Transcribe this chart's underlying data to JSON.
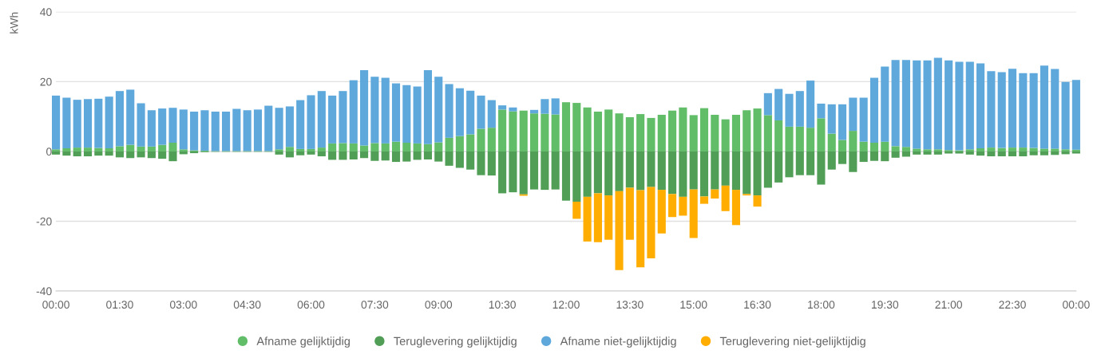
{
  "chart_data": {
    "type": "bar",
    "stacked": true,
    "ylabel": "kWh",
    "x": [
      0,
      0.25,
      0.5,
      0.75,
      1,
      1.25,
      1.5,
      1.75,
      2,
      2.25,
      2.5,
      2.75,
      3,
      3.25,
      3.5,
      3.75,
      4,
      4.25,
      4.5,
      4.75,
      5,
      5.25,
      5.5,
      5.75,
      6,
      6.25,
      6.5,
      6.75,
      7,
      7.25,
      7.5,
      7.75,
      8,
      8.25,
      8.5,
      8.75,
      9,
      9.25,
      9.5,
      9.75,
      10,
      10.25,
      10.5,
      10.75,
      11,
      11.25,
      11.5,
      11.75,
      12,
      12.25,
      12.5,
      12.75,
      13,
      13.25,
      13.5,
      13.75,
      14,
      14.25,
      14.5,
      14.75,
      15,
      15.25,
      15.5,
      15.75,
      16,
      16.25,
      16.5,
      16.75,
      17,
      17.25,
      17.5,
      17.75,
      18,
      18.25,
      18.5,
      18.75,
      19,
      19.25,
      19.5,
      19.75,
      20,
      20.25,
      20.5,
      20.75,
      21,
      21.25,
      21.5,
      21.75,
      22,
      22.25,
      22.5,
      22.75,
      23,
      23.25,
      23.5,
      23.75,
      24
    ],
    "series": [
      {
        "name": "Afname gelijktijdig",
        "color": "#62bd69",
        "values": [
          0.6,
          0.9,
          1.1,
          1.1,
          1.0,
          0.9,
          1.5,
          1.9,
          1.4,
          1.4,
          1.9,
          2.5,
          0.6,
          0.3,
          0.2,
          0.1,
          0.1,
          0.1,
          0.1,
          0.1,
          0.1,
          0.6,
          1.3,
          0.7,
          0.7,
          1.1,
          2.3,
          2.4,
          2.3,
          1.7,
          2.4,
          2.3,
          2.8,
          2.5,
          2.3,
          2.1,
          2.6,
          3.9,
          4.4,
          4.9,
          6.5,
          6.8,
          12.0,
          11.5,
          11.7,
          10.9,
          10.8,
          10.6,
          14.1,
          13.9,
          12.6,
          11.4,
          12.0,
          10.9,
          9.8,
          10.7,
          9.6,
          10.5,
          11.7,
          12.6,
          10.4,
          12.4,
          10.5,
          9.2,
          10.5,
          11.8,
          12.3,
          10.4,
          8.9,
          7.1,
          7.1,
          6.8,
          9.5,
          5.1,
          3.3,
          5.9,
          2.8,
          2.5,
          2.8,
          1.5,
          1.3,
          0.8,
          0.6,
          0.6,
          0.4,
          0.3,
          0.6,
          0.9,
          1.1,
          1.0,
          1.1,
          1.1,
          1.0,
          0.8,
          0.8,
          0.6,
          0.5
        ]
      },
      {
        "name": "Teruglevering gelijktijdig",
        "color": "#519e57",
        "values": [
          -0.9,
          -1.2,
          -1.4,
          -1.4,
          -1.2,
          -1.2,
          -1.7,
          -1.9,
          -1.7,
          -1.9,
          -2.1,
          -2.8,
          -0.8,
          -0.5,
          -0.2,
          -0.1,
          -0.1,
          -0.1,
          -0.1,
          -0.1,
          -0.1,
          -0.9,
          -1.7,
          -1.1,
          -0.9,
          -1.4,
          -2.4,
          -2.4,
          -2.3,
          -1.9,
          -2.7,
          -2.6,
          -3.0,
          -2.9,
          -2.4,
          -2.3,
          -2.9,
          -4.1,
          -4.7,
          -5.2,
          -6.8,
          -6.9,
          -12.0,
          -11.7,
          -12.3,
          -10.9,
          -11.0,
          -10.9,
          -14.1,
          -14.4,
          -13.0,
          -12.0,
          -12.6,
          -11.4,
          -10.4,
          -11.1,
          -10.2,
          -11.0,
          -12.2,
          -13.0,
          -10.9,
          -12.9,
          -10.9,
          -9.8,
          -11.0,
          -12.2,
          -12.6,
          -10.4,
          -8.9,
          -7.4,
          -6.8,
          -6.8,
          -9.5,
          -5.2,
          -3.6,
          -5.9,
          -3.0,
          -2.7,
          -2.8,
          -1.8,
          -1.5,
          -0.9,
          -0.9,
          -0.9,
          -0.6,
          -0.6,
          -0.9,
          -1.2,
          -1.4,
          -1.4,
          -1.4,
          -1.4,
          -1.1,
          -1.1,
          -1.0,
          -0.8,
          -0.6
        ]
      },
      {
        "name": "Afname niet-gelijktijdig",
        "color": "#5ea8dc",
        "values": [
          15.4,
          14.5,
          13.7,
          13.9,
          14.1,
          14.8,
          15.8,
          15.8,
          12.4,
          10.4,
          10.4,
          10.0,
          11.4,
          11.1,
          11.6,
          11.3,
          11.3,
          12.1,
          11.7,
          11.9,
          13.0,
          11.9,
          11.6,
          14.0,
          15.4,
          16.2,
          13.7,
          14.9,
          18.1,
          21.6,
          19.0,
          18.8,
          16.7,
          16.5,
          16.3,
          21.2,
          18.8,
          15.4,
          13.7,
          12.5,
          9.5,
          7.9,
          1.2,
          1.1,
          null,
          1.0,
          4.2,
          4.6,
          null,
          null,
          null,
          null,
          null,
          null,
          null,
          null,
          null,
          null,
          null,
          null,
          null,
          null,
          null,
          null,
          null,
          null,
          null,
          6.3,
          9.0,
          9.4,
          10.2,
          13.5,
          4.2,
          8.4,
          10.2,
          9.5,
          12.6,
          18.6,
          21.5,
          24.7,
          24.9,
          25.3,
          25.5,
          26.2,
          25.7,
          25.4,
          25.1,
          24.3,
          21.9,
          21.7,
          22.6,
          21.3,
          21.4,
          23.8,
          22.8,
          19.3,
          20.0
        ]
      },
      {
        "name": "Teruglevering niet-gelijktijdig",
        "color": "#ffad00",
        "values": [
          null,
          null,
          null,
          null,
          null,
          null,
          null,
          null,
          null,
          null,
          null,
          null,
          null,
          null,
          null,
          null,
          null,
          null,
          null,
          null,
          null,
          null,
          null,
          null,
          null,
          null,
          null,
          null,
          null,
          null,
          null,
          null,
          null,
          null,
          null,
          null,
          null,
          null,
          null,
          null,
          null,
          null,
          null,
          null,
          -0.4,
          null,
          null,
          null,
          null,
          -4.9,
          -12.8,
          -14.0,
          -12.7,
          -22.6,
          -14.9,
          -22.1,
          -20.4,
          -12.5,
          -6.6,
          -5.4,
          -13.9,
          -2.1,
          -2.6,
          -7.3,
          -10.1,
          -0.4,
          -3.2,
          null,
          null,
          null,
          null,
          null,
          null,
          null,
          null,
          null,
          null,
          null,
          null,
          null,
          null,
          null,
          null,
          null,
          null,
          null,
          null,
          null,
          null,
          null,
          null,
          null,
          null,
          null,
          null,
          null,
          null
        ]
      }
    ],
    "xlim": [
      0,
      24
    ],
    "xticks": [
      {
        "value": 0,
        "label": "00:00"
      },
      {
        "value": 1.5,
        "label": "01:30"
      },
      {
        "value": 3,
        "label": "03:00"
      },
      {
        "value": 4.5,
        "label": "04:30"
      },
      {
        "value": 6,
        "label": "06:00"
      },
      {
        "value": 7.5,
        "label": "07:30"
      },
      {
        "value": 9,
        "label": "09:00"
      },
      {
        "value": 10.5,
        "label": "10:30"
      },
      {
        "value": 12,
        "label": "12:00"
      },
      {
        "value": 13.5,
        "label": "13:30"
      },
      {
        "value": 15,
        "label": "15:00"
      },
      {
        "value": 16.5,
        "label": "16:30"
      },
      {
        "value": 18,
        "label": "18:00"
      },
      {
        "value": 19.5,
        "label": "19:30"
      },
      {
        "value": 21,
        "label": "21:00"
      },
      {
        "value": 22.5,
        "label": "22:30"
      },
      {
        "value": 24,
        "label": "00:00"
      }
    ],
    "ylim": [
      -40,
      40
    ],
    "yticks": [
      -40,
      -20,
      0,
      20,
      40
    ],
    "grid": "y",
    "legend": "bottom"
  }
}
